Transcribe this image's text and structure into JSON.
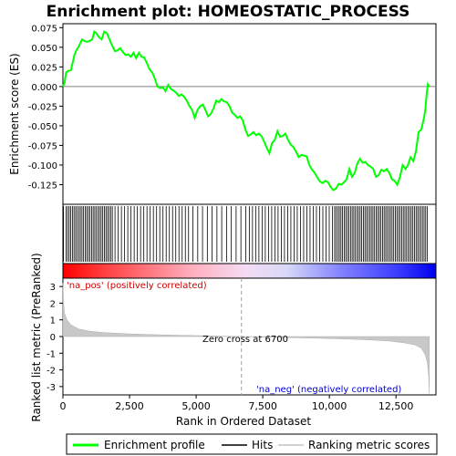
{
  "chart_data": {
    "type": "line",
    "title": "Enrichment plot: HOMEOSTATIC_PROCESS",
    "xlabel": "Rank in Ordered Dataset",
    "xlim": [
      0,
      14000
    ],
    "x_ticks": [
      0,
      2500,
      5000,
      7500,
      10000,
      12500
    ],
    "x_tick_labels": [
      "0",
      "2,500",
      "5,000",
      "7,500",
      "10,000",
      "12,500"
    ],
    "es_panel": {
      "ylabel": "Enrichment score (ES)",
      "ylim": [
        -0.15,
        0.08
      ],
      "y_ticks": [
        0.075,
        0.05,
        0.025,
        0.0,
        -0.025,
        -0.05,
        -0.075,
        -0.1,
        -0.125
      ],
      "y_tick_labels": [
        "0.075",
        "0.050",
        "0.025",
        "0.000",
        "-0.025",
        "-0.050",
        "-0.075",
        "-0.100",
        "-0.125"
      ],
      "series": [
        {
          "name": "Enrichment profile",
          "color": "#00ff00",
          "points": [
            [
              0,
              0.0
            ],
            [
              60,
              0.005
            ],
            [
              120,
              0.018
            ],
            [
              200,
              0.02
            ],
            [
              300,
              0.021
            ],
            [
              350,
              0.028
            ],
            [
              430,
              0.04
            ],
            [
              500,
              0.046
            ],
            [
              580,
              0.05
            ],
            [
              650,
              0.055
            ],
            [
              720,
              0.06
            ],
            [
              800,
              0.058
            ],
            [
              900,
              0.057
            ],
            [
              1000,
              0.058
            ],
            [
              1100,
              0.06
            ],
            [
              1180,
              0.07
            ],
            [
              1250,
              0.068
            ],
            [
              1350,
              0.063
            ],
            [
              1450,
              0.06
            ],
            [
              1550,
              0.07
            ],
            [
              1650,
              0.068
            ],
            [
              1750,
              0.06
            ],
            [
              1850,
              0.052
            ],
            [
              1950,
              0.045
            ],
            [
              2050,
              0.046
            ],
            [
              2150,
              0.049
            ],
            [
              2250,
              0.044
            ],
            [
              2350,
              0.04
            ],
            [
              2450,
              0.041
            ],
            [
              2550,
              0.038
            ],
            [
              2650,
              0.043
            ],
            [
              2750,
              0.036
            ],
            [
              2850,
              0.043
            ],
            [
              2950,
              0.038
            ],
            [
              3050,
              0.037
            ],
            [
              3150,
              0.03
            ],
            [
              3250,
              0.022
            ],
            [
              3350,
              0.018
            ],
            [
              3450,
              0.01
            ],
            [
              3550,
              0.0
            ],
            [
              3650,
              -0.002
            ],
            [
              3750,
              -0.001
            ],
            [
              3850,
              -0.006
            ],
            [
              3950,
              0.002
            ],
            [
              4050,
              -0.003
            ],
            [
              4150,
              -0.005
            ],
            [
              4250,
              -0.008
            ],
            [
              4350,
              -0.012
            ],
            [
              4450,
              -0.01
            ],
            [
              4550,
              -0.013
            ],
            [
              4650,
              -0.018
            ],
            [
              4750,
              -0.025
            ],
            [
              4850,
              -0.03
            ],
            [
              4950,
              -0.04
            ],
            [
              5050,
              -0.03
            ],
            [
              5150,
              -0.025
            ],
            [
              5250,
              -0.023
            ],
            [
              5350,
              -0.03
            ],
            [
              5450,
              -0.038
            ],
            [
              5550,
              -0.035
            ],
            [
              5650,
              -0.028
            ],
            [
              5750,
              -0.018
            ],
            [
              5850,
              -0.02
            ],
            [
              5950,
              -0.016
            ],
            [
              6050,
              -0.019
            ],
            [
              6150,
              -0.02
            ],
            [
              6250,
              -0.025
            ],
            [
              6350,
              -0.033
            ],
            [
              6450,
              -0.036
            ],
            [
              6550,
              -0.04
            ],
            [
              6650,
              -0.038
            ],
            [
              6750,
              -0.043
            ],
            [
              6850,
              -0.055
            ],
            [
              6950,
              -0.063
            ],
            [
              7050,
              -0.061
            ],
            [
              7150,
              -0.058
            ],
            [
              7250,
              -0.062
            ],
            [
              7350,
              -0.06
            ],
            [
              7450,
              -0.063
            ],
            [
              7550,
              -0.07
            ],
            [
              7650,
              -0.078
            ],
            [
              7750,
              -0.085
            ],
            [
              7850,
              -0.072
            ],
            [
              7950,
              -0.068
            ],
            [
              8050,
              -0.057
            ],
            [
              8150,
              -0.064
            ],
            [
              8250,
              -0.063
            ],
            [
              8350,
              -0.06
            ],
            [
              8450,
              -0.068
            ],
            [
              8550,
              -0.074
            ],
            [
              8650,
              -0.077
            ],
            [
              8750,
              -0.083
            ],
            [
              8850,
              -0.09
            ],
            [
              8950,
              -0.087
            ],
            [
              9050,
              -0.088
            ],
            [
              9150,
              -0.089
            ],
            [
              9250,
              -0.1
            ],
            [
              9350,
              -0.106
            ],
            [
              9450,
              -0.11
            ],
            [
              9550,
              -0.116
            ],
            [
              9650,
              -0.121
            ],
            [
              9750,
              -0.123
            ],
            [
              9850,
              -0.12
            ],
            [
              9950,
              -0.122
            ],
            [
              10050,
              -0.128
            ],
            [
              10150,
              -0.132
            ],
            [
              10250,
              -0.13
            ],
            [
              10350,
              -0.124
            ],
            [
              10450,
              -0.125
            ],
            [
              10550,
              -0.122
            ],
            [
              10650,
              -0.118
            ],
            [
              10750,
              -0.105
            ],
            [
              10850,
              -0.115
            ],
            [
              10950,
              -0.11
            ],
            [
              11050,
              -0.098
            ],
            [
              11150,
              -0.092
            ],
            [
              11250,
              -0.097
            ],
            [
              11350,
              -0.096
            ],
            [
              11450,
              -0.1
            ],
            [
              11550,
              -0.102
            ],
            [
              11650,
              -0.105
            ],
            [
              11750,
              -0.115
            ],
            [
              11850,
              -0.113
            ],
            [
              11950,
              -0.106
            ],
            [
              12050,
              -0.108
            ],
            [
              12150,
              -0.105
            ],
            [
              12250,
              -0.11
            ],
            [
              12350,
              -0.118
            ],
            [
              12450,
              -0.12
            ],
            [
              12550,
              -0.125
            ],
            [
              12650,
              -0.115
            ],
            [
              12750,
              -0.1
            ],
            [
              12850,
              -0.105
            ],
            [
              12950,
              -0.1
            ],
            [
              13050,
              -0.09
            ],
            [
              13150,
              -0.095
            ],
            [
              13250,
              -0.082
            ],
            [
              13350,
              -0.058
            ],
            [
              13450,
              -0.055
            ],
            [
              13550,
              -0.04
            ],
            [
              13600,
              -0.03
            ],
            [
              13650,
              -0.01
            ],
            [
              13700,
              0.003
            ],
            [
              13750,
              0.0
            ]
          ]
        }
      ]
    },
    "hits_panel": {
      "legend_name": "Hits"
    },
    "metric_panel": {
      "ylabel": "Ranked list metric (PreRanked)",
      "ylim": [
        -3.5,
        3.5
      ],
      "y_ticks": [
        3,
        2,
        1,
        0,
        -1,
        -2,
        -3
      ],
      "y_tick_labels": [
        "3",
        "2",
        "1",
        "0",
        "-1",
        "-2",
        "-3"
      ],
      "series_name": "Ranking metric scores",
      "points": [
        [
          0,
          3.2
        ],
        [
          20,
          2.0
        ],
        [
          60,
          1.4
        ],
        [
          150,
          1.0
        ],
        [
          300,
          0.7
        ],
        [
          600,
          0.45
        ],
        [
          1000,
          0.32
        ],
        [
          1500,
          0.24
        ],
        [
          2500,
          0.16
        ],
        [
          3500,
          0.11
        ],
        [
          4500,
          0.07
        ],
        [
          5500,
          0.04
        ],
        [
          6700,
          0.0
        ],
        [
          8000,
          -0.05
        ],
        [
          9500,
          -0.1
        ],
        [
          10500,
          -0.14
        ],
        [
          11500,
          -0.2
        ],
        [
          12300,
          -0.28
        ],
        [
          12800,
          -0.38
        ],
        [
          13200,
          -0.5
        ],
        [
          13450,
          -0.7
        ],
        [
          13600,
          -1.1
        ],
        [
          13680,
          -1.6
        ],
        [
          13730,
          -2.4
        ],
        [
          13750,
          -3.4
        ]
      ],
      "zero_cross_label": "Zero cross at 6700",
      "zero_cross_x": 6700,
      "pos_label": "'na_pos' (positively correlated)",
      "neg_label": "'na_neg' (negatively correlated)"
    },
    "legend": [
      {
        "label": "Enrichment profile",
        "color": "#00ff00"
      },
      {
        "label": "Hits",
        "color": "#000000"
      },
      {
        "label": "Ranking metric scores",
        "color": "#c0c0c0"
      }
    ]
  }
}
